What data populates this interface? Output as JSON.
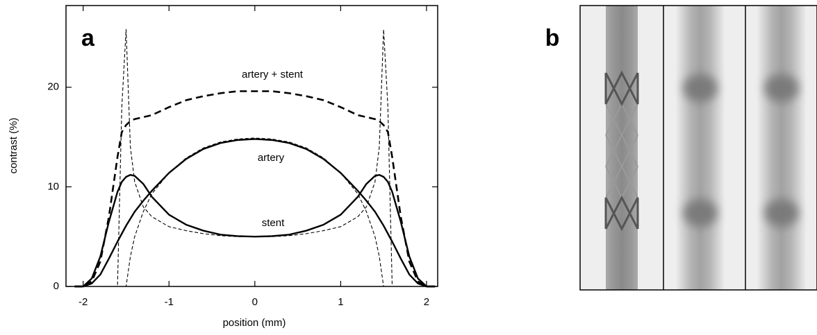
{
  "chart_data": {
    "type": "line",
    "panel_label": "a",
    "xlabel": "position  (mm)",
    "ylabel": "contrast  (%)",
    "xlim": [
      -2.2,
      2.13
    ],
    "ylim": [
      0,
      28.2
    ],
    "xticks": [
      -2,
      -1,
      0,
      1,
      2
    ],
    "yticks": [
      0,
      10,
      20
    ],
    "x": [
      -2.1,
      -2.0,
      -1.9,
      -1.8,
      -1.7,
      -1.6,
      -1.55,
      -1.5,
      -1.45,
      -1.4,
      -1.3,
      -1.2,
      -1.0,
      -0.8,
      -0.6,
      -0.4,
      -0.2,
      0,
      0.2,
      0.4,
      0.6,
      0.8,
      1.0,
      1.2,
      1.3,
      1.4,
      1.45,
      1.5,
      1.55,
      1.6,
      1.7,
      1.8,
      1.9,
      2.0,
      2.1
    ],
    "series": [
      {
        "name": "artery + stent",
        "color": "#000",
        "width": 2.6,
        "dash": "10 6",
        "values": [
          0,
          0,
          0.5,
          2.5,
          7,
          13,
          15.5,
          16.2,
          16.6,
          16.8,
          17,
          17.2,
          18,
          18.7,
          19.1,
          19.4,
          19.6,
          19.6,
          19.6,
          19.4,
          19.1,
          18.7,
          18,
          17.2,
          17,
          16.8,
          16.6,
          16.2,
          15.5,
          13,
          7,
          2.5,
          0.5,
          0,
          0
        ]
      },
      {
        "name": "artery",
        "color": "#000",
        "width": 2.4,
        "values": [
          0,
          0,
          0.3,
          1.2,
          2.8,
          4.5,
          5.3,
          6.1,
          6.8,
          7.5,
          8.6,
          9.6,
          11.4,
          12.8,
          13.8,
          14.4,
          14.7,
          14.8,
          14.7,
          14.4,
          13.8,
          12.8,
          11.4,
          9.6,
          8.6,
          7.5,
          6.8,
          6.1,
          5.3,
          4.5,
          2.8,
          1.2,
          0.3,
          0,
          0
        ]
      },
      {
        "name": "stent",
        "color": "#000",
        "width": 2.4,
        "values": [
          0,
          0,
          0.8,
          3,
          6.5,
          9.5,
          10.5,
          11,
          11.2,
          11.1,
          10.3,
          9,
          7.2,
          6.2,
          5.6,
          5.2,
          5.05,
          5,
          5.05,
          5.2,
          5.6,
          6.2,
          7.2,
          9,
          10.3,
          11.1,
          11.2,
          11,
          10.5,
          9.5,
          6.5,
          3,
          0.8,
          0,
          0
        ]
      },
      {
        "color": "#000",
        "width": 1.1,
        "dash": "5 3",
        "values": [
          0,
          0,
          0,
          0,
          0,
          0,
          18,
          25.8,
          14,
          10.5,
          8,
          7,
          6,
          5.6,
          5.3,
          5.1,
          5,
          5,
          5,
          5.1,
          5.3,
          5.6,
          6,
          7,
          8,
          10.5,
          14,
          25.8,
          18,
          0,
          0,
          0,
          0,
          0,
          0
        ]
      },
      {
        "color": "#000",
        "width": 1.1,
        "dash": "5 3",
        "values": [
          0,
          0,
          0,
          0,
          0,
          0,
          0,
          0,
          3,
          5,
          7.5,
          9.3,
          11.4,
          12.9,
          13.9,
          14.5,
          14.8,
          14.9,
          14.8,
          14.5,
          13.9,
          12.9,
          11.4,
          9.3,
          7.5,
          5,
          3,
          0,
          0,
          0,
          0,
          0,
          0,
          0,
          0
        ]
      }
    ]
  },
  "image_panel": {
    "label": "b"
  }
}
